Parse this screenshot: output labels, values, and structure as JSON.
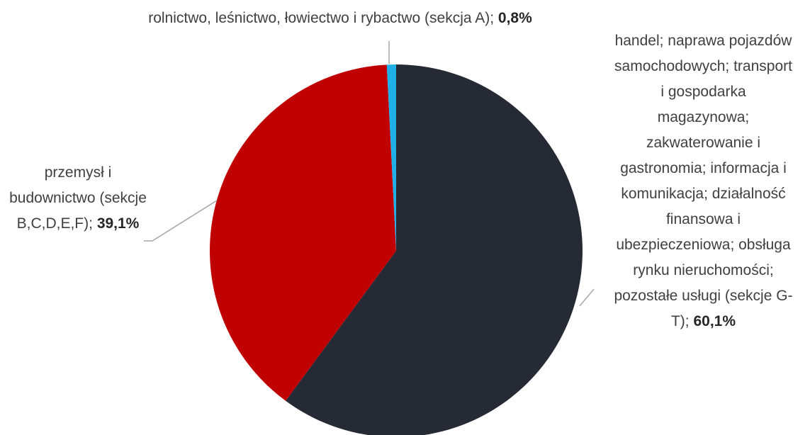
{
  "chart_data": {
    "type": "pie",
    "categories": [
      "handel; naprawa pojazdów samochodowych; transport i gospodarka magazynowa; zakwaterowanie i gastronomia; informacja i komunikacja; działalność finansowa i ubezpieczeniowa; obsługa rynku nieruchomości; pozostałe usługi (sekcje G-T);",
      "przemysł i budownictwo (sekcje B,C,D,E,F);",
      "rolnictwo, leśnictwo, łowiectwo i rybactwo (sekcja A);"
    ],
    "values": [
      60.1,
      39.1,
      0.8
    ],
    "value_labels": [
      "60,1%",
      "39,1%",
      "0,8%"
    ],
    "colors": [
      "#252a34",
      "#c00000",
      "#1fb0e8"
    ]
  }
}
